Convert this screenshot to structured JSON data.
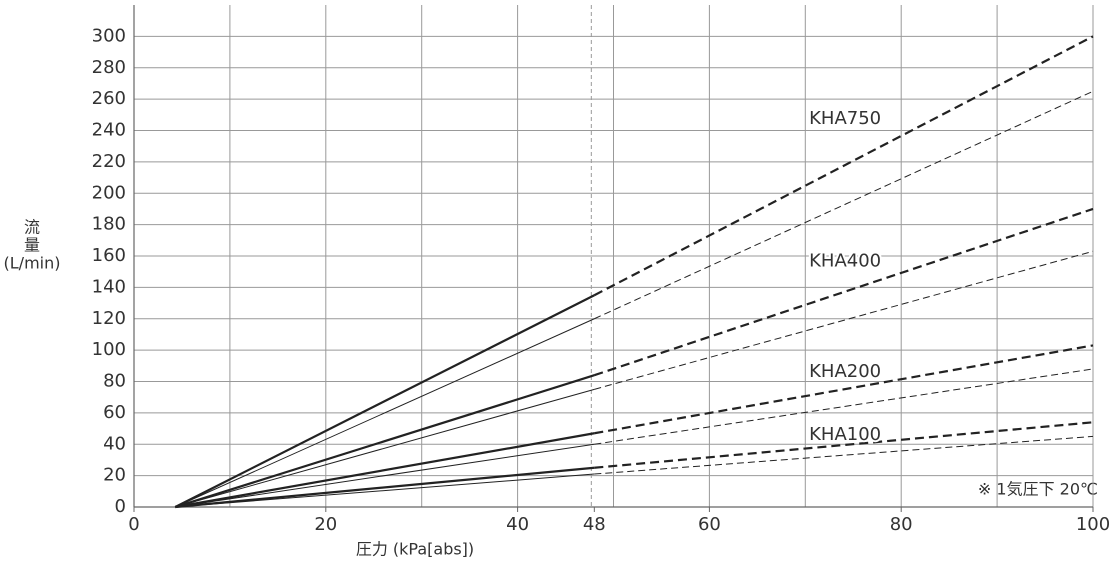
{
  "chart_data": {
    "type": "line",
    "xlabel": "圧力 (kPa[abs])",
    "ylabel": [
      "流",
      "量",
      "(L/min)"
    ],
    "note": "※ 1気圧下 20℃",
    "x": [
      4.3,
      48,
      100
    ],
    "series": [
      {
        "name": "KHA750",
        "color": "#222222",
        "width": 2.2,
        "values": [
          0,
          135,
          300
        ]
      },
      {
        "color": "#222222",
        "width": 1,
        "values": [
          0,
          120,
          265
        ]
      },
      {
        "name": "KHA400",
        "color": "#222222",
        "width": 2.2,
        "values": [
          0,
          84,
          190
        ]
      },
      {
        "color": "#222222",
        "width": 1,
        "values": [
          0,
          75,
          163
        ]
      },
      {
        "name": "KHA200",
        "color": "#222222",
        "width": 2.2,
        "values": [
          0,
          47,
          103
        ]
      },
      {
        "color": "#222222",
        "width": 1,
        "values": [
          0,
          40,
          88
        ]
      },
      {
        "name": "KHA100",
        "color": "#222222",
        "width": 2.2,
        "values": [
          0,
          25,
          54
        ]
      },
      {
        "color": "#222222",
        "width": 1,
        "values": [
          0,
          21,
          45
        ]
      }
    ],
    "reference_line": 48,
    "xlim": [
      0,
      100
    ],
    "ylim": [
      0,
      320
    ],
    "xticks": [
      0,
      20,
      40,
      48,
      60,
      80,
      100
    ],
    "x_gridlines": [
      10,
      20,
      30,
      40,
      50,
      60,
      70,
      80,
      90,
      100
    ],
    "yticks": [
      0,
      20,
      40,
      60,
      80,
      100,
      120,
      140,
      160,
      180,
      200,
      220,
      240,
      260,
      280,
      300
    ],
    "grid": true
  }
}
